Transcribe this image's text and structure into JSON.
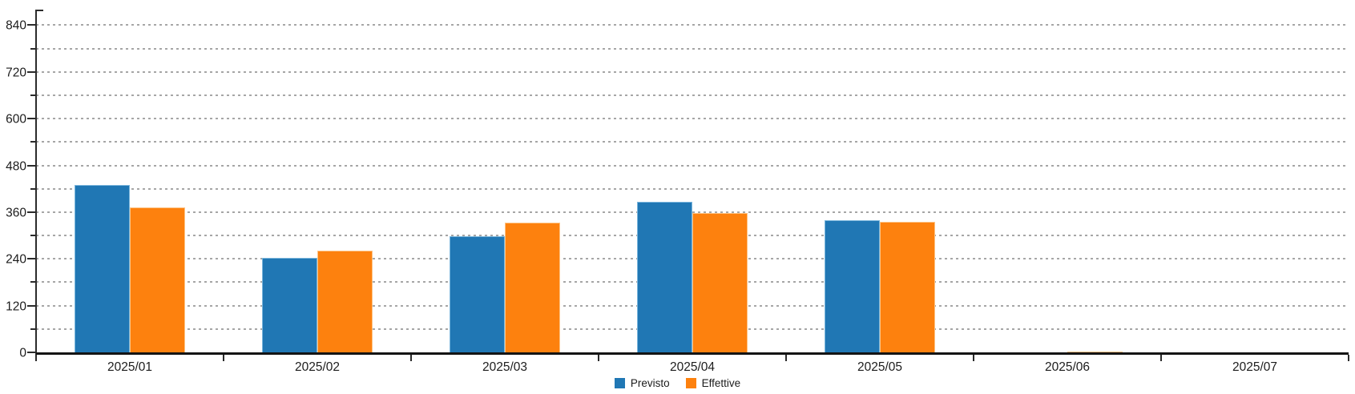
{
  "chart_data": {
    "type": "bar",
    "title": "",
    "xlabel": "",
    "ylabel": "",
    "categories": [
      "2025/01",
      "2025/02",
      "2025/03",
      "2025/04",
      "2025/05",
      "2025/06",
      "2025/07"
    ],
    "series": [
      {
        "name": "Previsto",
        "color": "#2077b4",
        "border_color": "#7ab6dc",
        "values": [
          430,
          243,
          298,
          387,
          340,
          0,
          0
        ]
      },
      {
        "name": "Effettive",
        "color": "#fd810e",
        "border_color": "#fdc384",
        "values": [
          373,
          262,
          334,
          358,
          336,
          2,
          0
        ]
      }
    ],
    "ylim": [
      0,
      880
    ],
    "y_tick_max": 840,
    "y_major_step": 120,
    "y_minor_step": 60,
    "y_tick_labels": [
      "0",
      "120",
      "240",
      "360",
      "480",
      "600",
      "720",
      "840"
    ],
    "grid": "horizontal-dashed",
    "legend_position": "bottom-center",
    "axis_color": "#2b2b2b",
    "grid_color": "#a6a6a6"
  }
}
